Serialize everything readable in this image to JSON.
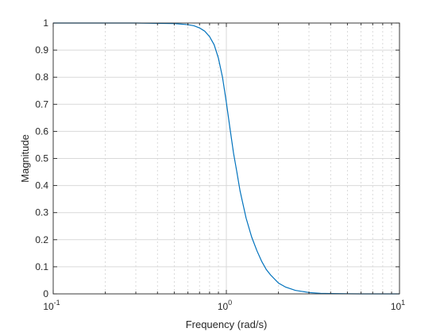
{
  "chart_data": {
    "type": "line",
    "title": "",
    "xlabel": "Frequency (rad/s)",
    "ylabel": "Magnitude",
    "xscale": "log",
    "xlim": [
      0.1,
      10
    ],
    "ylim": [
      0,
      1
    ],
    "grid": true,
    "minor_grid": true,
    "legend": "none",
    "x_ticks": [
      {
        "value": 0.1,
        "base": "10",
        "exp": "-1"
      },
      {
        "value": 1,
        "base": "10",
        "exp": "0"
      },
      {
        "value": 10,
        "base": "10",
        "exp": "1"
      }
    ],
    "y_ticks": [
      {
        "value": 0,
        "label": "0"
      },
      {
        "value": 0.1,
        "label": "0.1"
      },
      {
        "value": 0.2,
        "label": "0.2"
      },
      {
        "value": 0.3,
        "label": "0.3"
      },
      {
        "value": 0.4,
        "label": "0.4"
      },
      {
        "value": 0.5,
        "label": "0.5"
      },
      {
        "value": 0.6,
        "label": "0.6"
      },
      {
        "value": 0.7,
        "label": "0.7"
      },
      {
        "value": 0.8,
        "label": "0.8"
      },
      {
        "value": 0.9,
        "label": "0.9"
      },
      {
        "value": 1,
        "label": "1"
      }
    ],
    "series": [
      {
        "color": "#0072bd",
        "x": [
          0.1,
          0.3,
          0.5,
          0.6,
          0.65,
          0.7,
          0.75,
          0.8,
          0.85,
          0.9,
          0.95,
          1.0,
          1.05,
          1.1,
          1.15,
          1.2,
          1.3,
          1.4,
          1.5,
          1.6,
          1.7,
          1.8,
          2.0,
          2.2,
          2.5,
          3.0,
          3.5,
          4.0,
          5.0,
          6.0,
          8.0,
          10.0
        ],
        "y": [
          1.0,
          1.0,
          0.998,
          0.994,
          0.99,
          0.982,
          0.97,
          0.95,
          0.92,
          0.87,
          0.8,
          0.707,
          0.61,
          0.52,
          0.45,
          0.38,
          0.28,
          0.21,
          0.16,
          0.12,
          0.09,
          0.07,
          0.04,
          0.025,
          0.013,
          0.005,
          0.002,
          0.001,
          0.0003,
          0.0001,
          0.0,
          0.0
        ]
      }
    ]
  }
}
